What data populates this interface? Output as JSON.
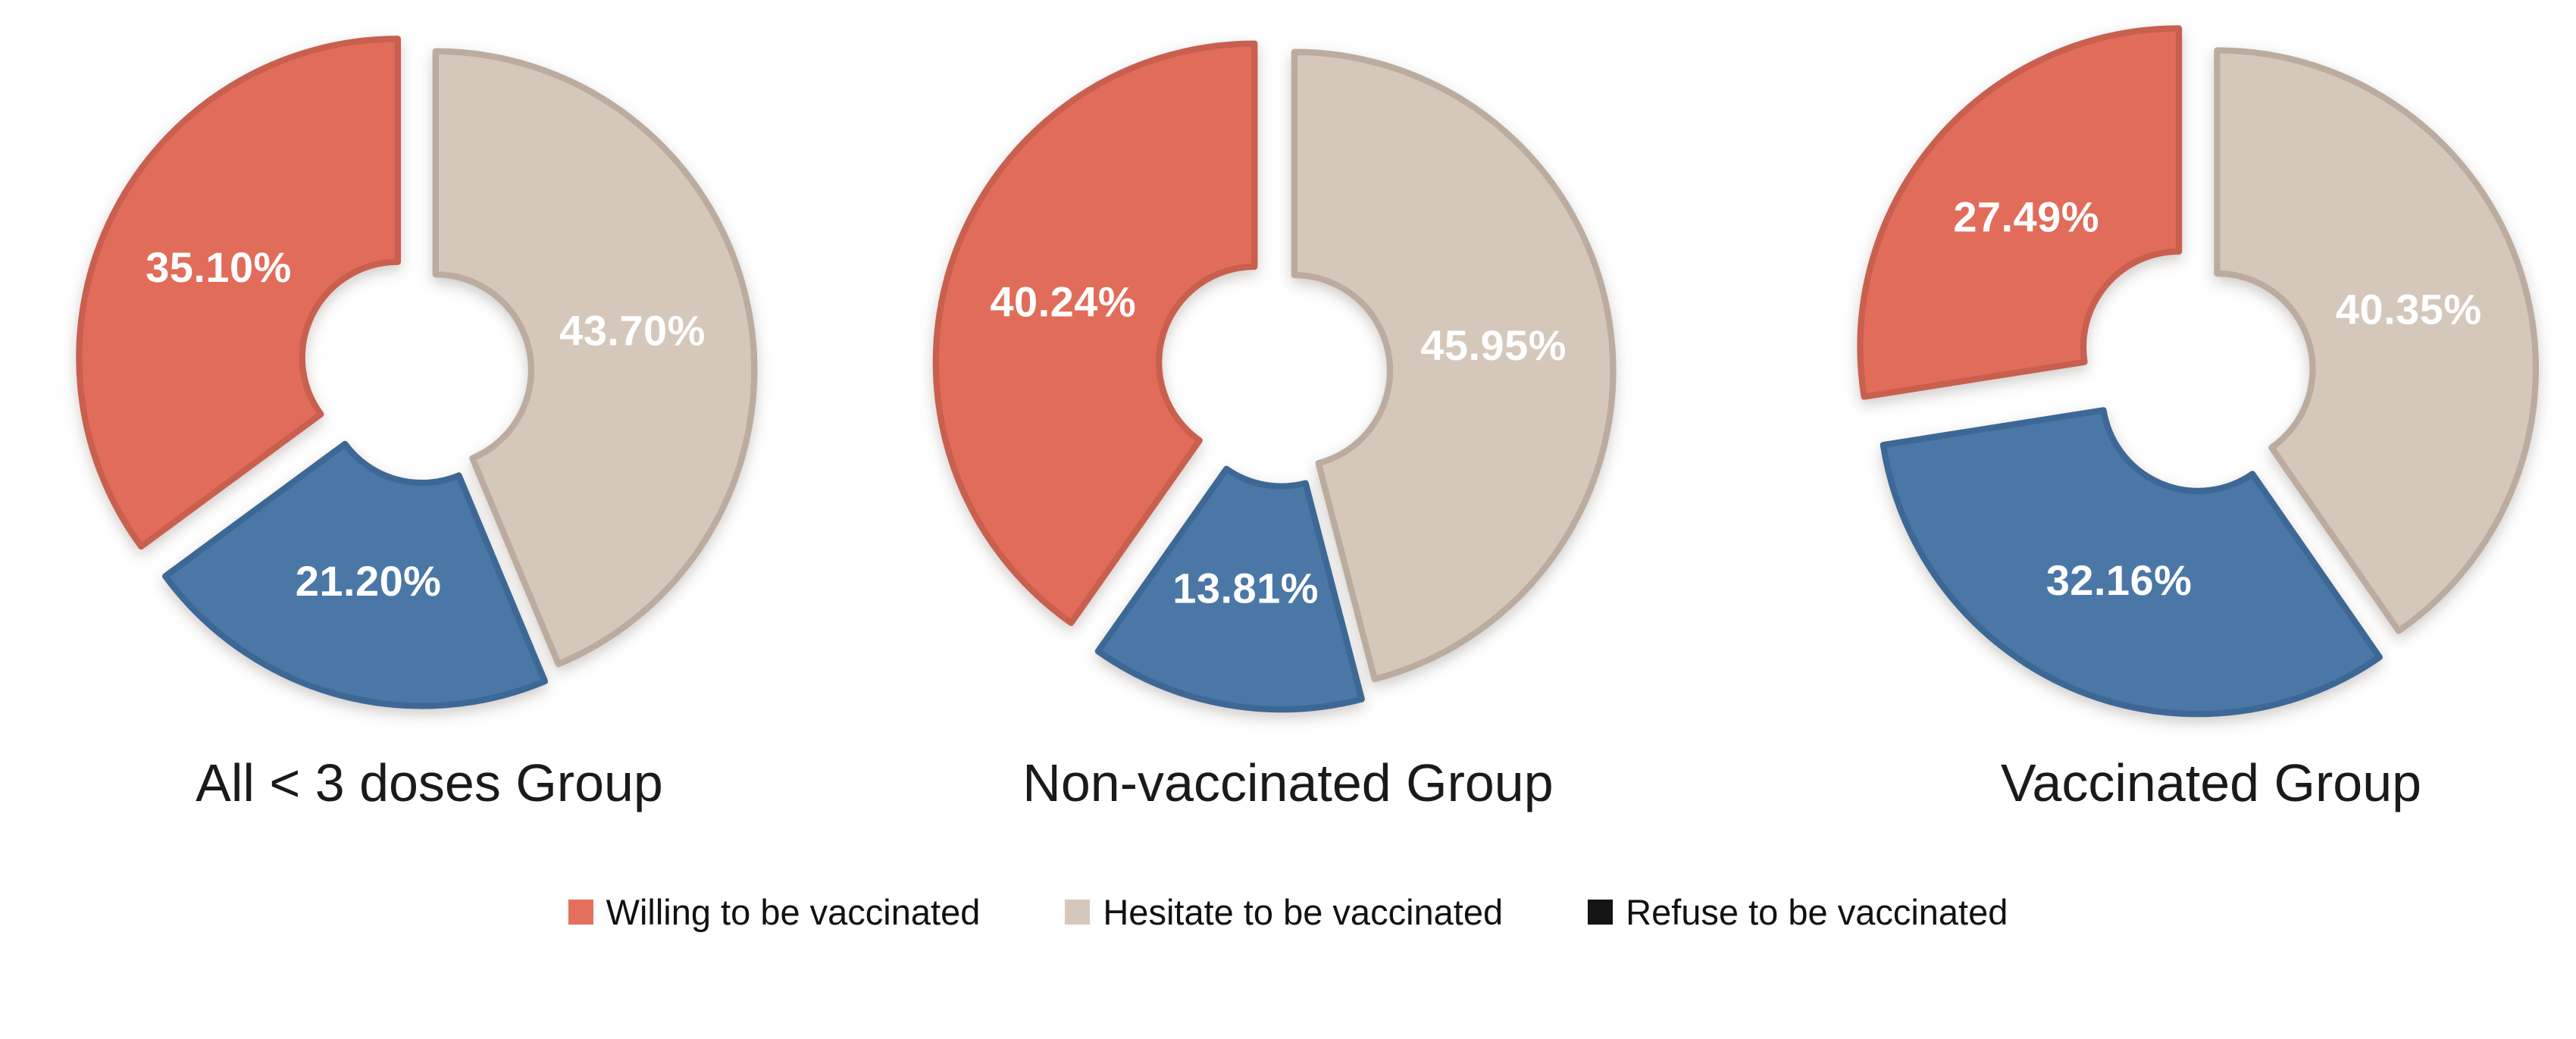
{
  "figure": {
    "background": "#ffffff",
    "description_texts": {
      "caption_1": "All < 3 doses Group",
      "caption_2": "Non-vaccinated Group",
      "caption_3": "Vaccinated Group"
    }
  },
  "legend": {
    "position": "bottom-center",
    "items": [
      {
        "label": "Willing to be vaccinated",
        "color": "#E56F5D"
      },
      {
        "label": "Hesitate to be vaccinated",
        "color": "#D5C8BB"
      },
      {
        "label": "Refuse to be vaccinated",
        "color": "#141414"
      }
    ]
  },
  "chart_data": [
    {
      "type": "pie",
      "subtype": "exploded-doughnut",
      "title": "All < 3 doses Group",
      "donut_hole_ratio": 0.3,
      "start_angle_deg": 0,
      "direction": "clockwise",
      "grid": false,
      "slices": [
        {
          "category": "Hesitate to be vaccinated",
          "value": 43.7,
          "label": "43.70%",
          "color": "#D5C8BB",
          "stroke": "#BBAC9F",
          "explode": 0.03
        },
        {
          "category": "Refuse to be vaccinated",
          "value": 21.2,
          "label": "21.20%",
          "color": "#4A77A6",
          "stroke": "#3D6896",
          "explode": 0.05
        },
        {
          "category": "Willing to be vaccinated",
          "value": 35.1,
          "label": "35.10%",
          "color": "#E26C5A",
          "stroke": "#C95F4E",
          "explode": 0.1
        }
      ]
    },
    {
      "type": "pie",
      "subtype": "exploded-doughnut",
      "title": "Non-vaccinated Group",
      "donut_hole_ratio": 0.3,
      "start_angle_deg": 0,
      "direction": "clockwise",
      "grid": false,
      "slices": [
        {
          "category": "Hesitate to be vaccinated",
          "value": 45.95,
          "label": "45.95%",
          "color": "#D5C8BB",
          "stroke": "#BBAC9F",
          "explode": 0.03
        },
        {
          "category": "Refuse to be vaccinated",
          "value": 13.81,
          "label": "13.81%",
          "color": "#4A77A6",
          "stroke": "#3D6896",
          "explode": 0.06
        },
        {
          "category": "Willing to be vaccinated",
          "value": 40.24,
          "label": "40.24%",
          "color": "#E26C5A",
          "stroke": "#C95F4E",
          "explode": 0.1
        }
      ]
    },
    {
      "type": "pie",
      "subtype": "exploded-doughnut",
      "title": "Vaccinated Group",
      "donut_hole_ratio": 0.3,
      "start_angle_deg": 0,
      "direction": "clockwise",
      "grid": false,
      "slices": [
        {
          "category": "Hesitate to be vaccinated",
          "value": 40.35,
          "label": "40.35%",
          "color": "#D5C8BB",
          "stroke": "#BBAC9F",
          "explode": 0.03
        },
        {
          "category": "Refuse to be vaccinated",
          "value": 32.16,
          "label": "32.16%",
          "color": "#4A77A6",
          "stroke": "#3D6896",
          "explode": 0.08
        },
        {
          "category": "Willing to be vaccinated",
          "value": 27.49,
          "label": "27.49%",
          "color": "#E26C5A",
          "stroke": "#C95F4E",
          "explode": 0.12
        }
      ]
    }
  ]
}
